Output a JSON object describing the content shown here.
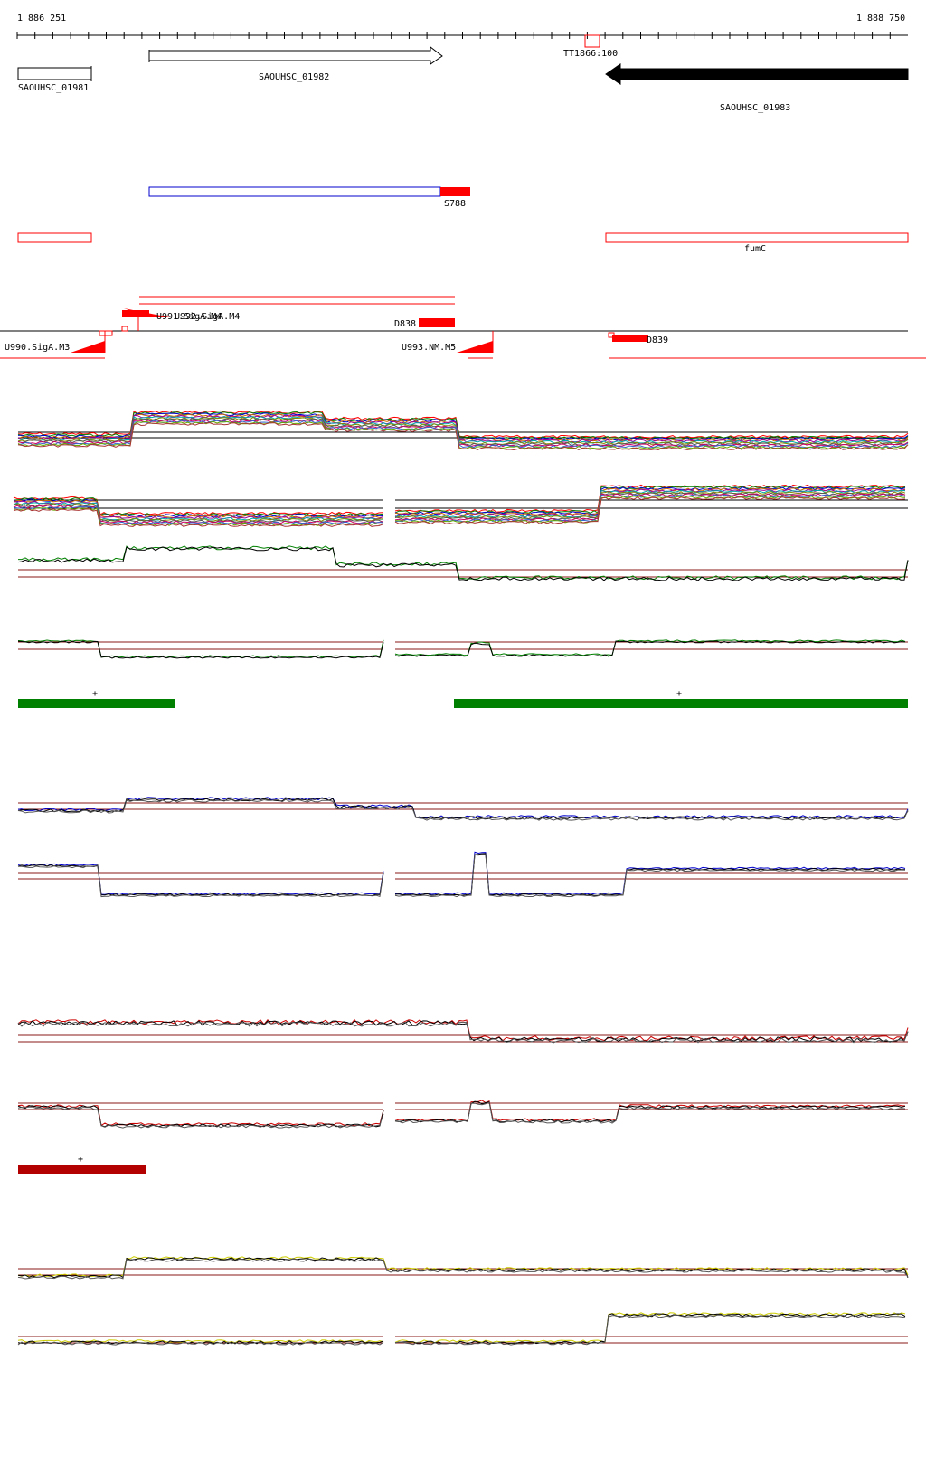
{
  "coords": {
    "start": "1 886 251",
    "end": "1 888 750"
  },
  "genes": [
    {
      "id": "SAOUHSC_01981",
      "label": "SAOUHSC_01981",
      "strand": "+"
    },
    {
      "id": "SAOUHSC_01982",
      "label": "SAOUHSC_01982",
      "strand": "+"
    },
    {
      "id": "SAOUHSC_01983",
      "label": "SAOUHSC_01983",
      "strand": "-"
    }
  ],
  "terminator": {
    "label": "TT1866:100"
  },
  "srna": {
    "label": "S788"
  },
  "operons": [
    {
      "label": "fumC"
    }
  ],
  "segments": [
    {
      "label": "U990.SigA.M3"
    },
    {
      "label": "U991.SigA.M4"
    },
    {
      "label": "U992.SigA.M4"
    },
    {
      "label": "D838"
    },
    {
      "label": "U993.NM.M5"
    },
    {
      "label": "D839"
    }
  ],
  "expression_tracks": [
    {
      "name": "all-conditions",
      "color": "#808080"
    },
    {
      "name": "condition-green",
      "color": "#008000",
      "plus_marks": [
        "+",
        "+"
      ]
    },
    {
      "name": "condition-blue",
      "color": "#0000cc"
    },
    {
      "name": "condition-red",
      "color": "#cc0000",
      "plus_marks": [
        "+"
      ]
    },
    {
      "name": "condition-yellow",
      "color": "#cccc00"
    }
  ],
  "colors": {
    "forward_gene": "#000000",
    "reverse_gene": "#000000",
    "srna_box": "#0000cc",
    "highlight": "#ff0000",
    "threshold_line": "#8b1a1a",
    "green": "#008000",
    "blue": "#0000cc",
    "red": "#cc0000",
    "dark_red": "#b30000",
    "yellow": "#cccc00"
  }
}
